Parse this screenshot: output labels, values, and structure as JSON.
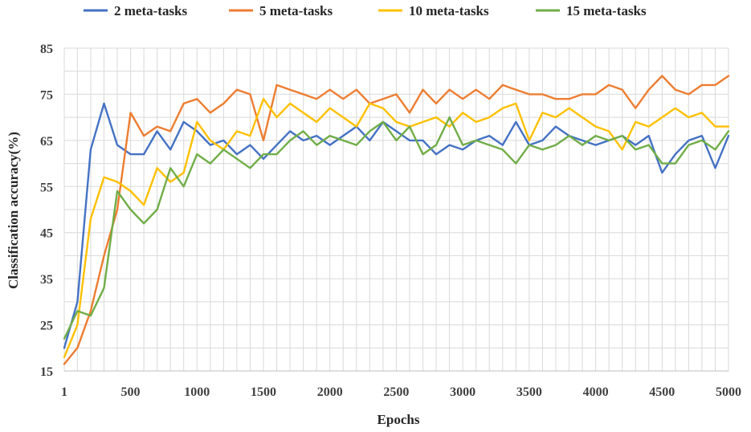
{
  "chart_data": {
    "type": "line",
    "xlabel": "Epochs",
    "ylabel": "Classification accuracy(%)",
    "ylim": [
      15,
      85
    ],
    "yticks": [
      15,
      25,
      35,
      45,
      55,
      65,
      75,
      85
    ],
    "xlim": [
      1,
      5000
    ],
    "xticks": [
      1,
      500,
      1000,
      1500,
      2000,
      2500,
      3000,
      3500,
      4000,
      4500,
      5000
    ],
    "xtick_labels": [
      "1",
      "500",
      "1000",
      "1500",
      "2000",
      "2500",
      "3000",
      "3500",
      "4000",
      "4500",
      "5000"
    ],
    "grid": "vertical and horizontal",
    "legend_position": "top",
    "series": [
      {
        "name": "2 meta-tasks",
        "color": "#4472c4",
        "x": [
          1,
          100,
          200,
          300,
          400,
          500,
          600,
          700,
          800,
          900,
          1000,
          1100,
          1200,
          1300,
          1400,
          1500,
          1600,
          1700,
          1800,
          1900,
          2000,
          2100,
          2200,
          2300,
          2400,
          2500,
          2600,
          2700,
          2800,
          2900,
          3000,
          3100,
          3200,
          3300,
          3400,
          3500,
          3600,
          3700,
          3800,
          3900,
          4000,
          4100,
          4200,
          4300,
          4400,
          4500,
          4600,
          4700,
          4800,
          4900,
          5000
        ],
        "values": [
          20,
          30,
          63,
          73,
          64,
          62,
          62,
          67,
          63,
          69,
          67,
          64,
          65,
          62,
          64,
          61,
          64,
          67,
          65,
          66,
          64,
          66,
          68,
          65,
          69,
          67,
          65,
          65,
          62,
          64,
          63,
          65,
          66,
          64,
          69,
          64,
          65,
          68,
          66,
          65,
          64,
          65,
          66,
          64,
          66,
          58,
          62,
          65,
          66,
          59,
          66
        ]
      },
      {
        "name": "5 meta-tasks",
        "color": "#ed7d31",
        "x": [
          1,
          100,
          200,
          300,
          400,
          500,
          600,
          700,
          800,
          900,
          1000,
          1100,
          1200,
          1300,
          1400,
          1500,
          1600,
          1700,
          1800,
          1900,
          2000,
          2100,
          2200,
          2300,
          2400,
          2500,
          2600,
          2700,
          2800,
          2900,
          3000,
          3100,
          3200,
          3300,
          3400,
          3500,
          3600,
          3700,
          3800,
          3900,
          4000,
          4100,
          4200,
          4300,
          4400,
          4500,
          4600,
          4700,
          4800,
          4900,
          5000
        ],
        "values": [
          16.5,
          20,
          28,
          40,
          50,
          71,
          66,
          68,
          67,
          73,
          74,
          71,
          73,
          76,
          75,
          65,
          77,
          76,
          75,
          74,
          76,
          74,
          76,
          73,
          74,
          75,
          71,
          76,
          73,
          76,
          74,
          76,
          74,
          77,
          76,
          75,
          75,
          74,
          74,
          75,
          75,
          77,
          76,
          72,
          76,
          79,
          76,
          75,
          77,
          77,
          79
        ]
      },
      {
        "name": "10 meta-tasks",
        "color": "#ffc000",
        "x": [
          1,
          100,
          200,
          300,
          400,
          500,
          600,
          700,
          800,
          900,
          1000,
          1100,
          1200,
          1300,
          1400,
          1500,
          1600,
          1700,
          1800,
          1900,
          2000,
          2100,
          2200,
          2300,
          2400,
          2500,
          2600,
          2700,
          2800,
          2900,
          3000,
          3100,
          3200,
          3300,
          3400,
          3500,
          3600,
          3700,
          3800,
          3900,
          4000,
          4100,
          4200,
          4300,
          4400,
          4500,
          4600,
          4700,
          4800,
          4900,
          5000
        ],
        "values": [
          18,
          25,
          48,
          57,
          56,
          54,
          51,
          59,
          56,
          58,
          69,
          65,
          63,
          67,
          66,
          74,
          70,
          73,
          71,
          69,
          72,
          70,
          68,
          73,
          72,
          69,
          68,
          69,
          70,
          68,
          71,
          69,
          70,
          72,
          73,
          65,
          71,
          70,
          72,
          70,
          68,
          67,
          63,
          69,
          68,
          70,
          72,
          70,
          71,
          68,
          68
        ]
      },
      {
        "name": "15 meta-tasks",
        "color": "#70ad47",
        "x": [
          1,
          100,
          200,
          300,
          400,
          500,
          600,
          700,
          800,
          900,
          1000,
          1100,
          1200,
          1300,
          1400,
          1500,
          1600,
          1700,
          1800,
          1900,
          2000,
          2100,
          2200,
          2300,
          2400,
          2500,
          2600,
          2700,
          2800,
          2900,
          3000,
          3100,
          3200,
          3300,
          3400,
          3500,
          3600,
          3700,
          3800,
          3900,
          4000,
          4100,
          4200,
          4300,
          4400,
          4500,
          4600,
          4700,
          4800,
          4900,
          5000
        ],
        "values": [
          22,
          28,
          27,
          33,
          54,
          50,
          47,
          50,
          59,
          55,
          62,
          60,
          63,
          61,
          59,
          62,
          62,
          65,
          67,
          64,
          66,
          65,
          64,
          67,
          69,
          65,
          68,
          62,
          64,
          70,
          64,
          65,
          64,
          63,
          60,
          64,
          63,
          64,
          66,
          64,
          66,
          65,
          66,
          63,
          64,
          60,
          60,
          64,
          65,
          63,
          67
        ]
      }
    ]
  }
}
